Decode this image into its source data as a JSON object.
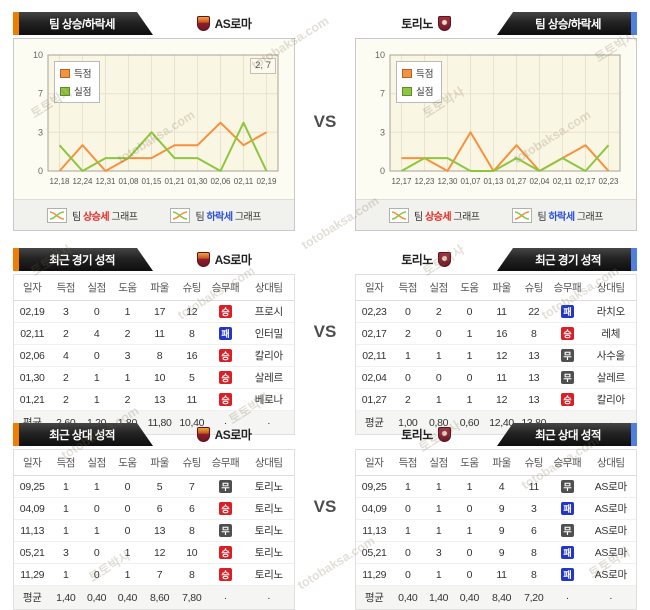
{
  "vs_label": "VS",
  "watermark": {
    "korean": "토토박사",
    "domain": "totobaksa.com"
  },
  "teams": {
    "left": "AS로마",
    "right": "토리노"
  },
  "colors": {
    "accent_left": "#f07d00",
    "accent_right": "#4f7fe0",
    "line_score": "#f6923e",
    "line_concede": "#8dc63f",
    "badge": {
      "승": "#da1f26",
      "무": "#4f4f4f",
      "패": "#2336c9"
    }
  },
  "trend": {
    "tab_label": "팀 상승/하락세",
    "legend": {
      "rise": {
        "prefix": "팀",
        "word": "상승세",
        "suffix": "그래프"
      },
      "fall": {
        "prefix": "팀",
        "word": "하락세",
        "suffix": "그래프"
      }
    }
  },
  "chart_data": [
    {
      "type": "line",
      "team": "AS로마",
      "yticks": [
        0,
        3,
        7,
        10
      ],
      "x": [
        "12,18",
        "12,24",
        "12,31",
        "01,08",
        "01,15",
        "01,21",
        "01,30",
        "02,06",
        "02,11",
        "02,19"
      ],
      "series": [
        {
          "name": "득점",
          "color": "#f6923e",
          "values": [
            0,
            2,
            0,
            1,
            1,
            2,
            2,
            4,
            2,
            3
          ]
        },
        {
          "name": "실점",
          "color": "#8dc63f",
          "values": [
            2,
            0,
            1,
            1,
            3,
            1,
            1,
            0,
            4,
            0
          ]
        }
      ],
      "annotation": "2, 7",
      "legend_position": "top-left",
      "grid": true
    },
    {
      "type": "line",
      "team": "토리노",
      "yticks": [
        0,
        3,
        7,
        10
      ],
      "x": [
        "12,17",
        "12,23",
        "12,30",
        "01,07",
        "01,13",
        "01,27",
        "02,04",
        "02,11",
        "02,17",
        "02,23"
      ],
      "series": [
        {
          "name": "득점",
          "color": "#f6923e",
          "values": [
            1,
            1,
            0,
            3,
            0,
            2,
            0,
            1,
            2,
            0
          ]
        },
        {
          "name": "실점",
          "color": "#8dc63f",
          "values": [
            0,
            1,
            1,
            0,
            0,
            1,
            0,
            1,
            0,
            2
          ]
        }
      ],
      "annotation": null,
      "legend_position": "top-left",
      "grid": true
    }
  ],
  "recent": {
    "tab_label": "최근 경기 성적",
    "columns": [
      "일자",
      "득점",
      "실점",
      "도움",
      "파울",
      "슈팅",
      "승무패",
      "상대팀"
    ],
    "left": {
      "rows": [
        {
          "cells": [
            "02,19",
            "3",
            "0",
            "1",
            "17",
            "12"
          ],
          "result": "승",
          "opponent": "프로시"
        },
        {
          "cells": [
            "02,11",
            "2",
            "4",
            "2",
            "11",
            "8"
          ],
          "result": "패",
          "opponent": "인터밀"
        },
        {
          "cells": [
            "02,06",
            "4",
            "0",
            "3",
            "8",
            "16"
          ],
          "result": "승",
          "opponent": "칼리아"
        },
        {
          "cells": [
            "01,30",
            "2",
            "1",
            "1",
            "10",
            "5"
          ],
          "result": "승",
          "opponent": "살레르"
        },
        {
          "cells": [
            "01,21",
            "2",
            "1",
            "2",
            "13",
            "11"
          ],
          "result": "승",
          "opponent": "베로나"
        }
      ],
      "avg": {
        "cells": [
          "평균",
          "2,60",
          "1,20",
          "1,80",
          "11,80",
          "10,40"
        ],
        "result": "·",
        "opponent": "·"
      }
    },
    "right": {
      "rows": [
        {
          "cells": [
            "02,23",
            "0",
            "2",
            "0",
            "11",
            "22"
          ],
          "result": "패",
          "opponent": "라치오"
        },
        {
          "cells": [
            "02,17",
            "2",
            "0",
            "1",
            "16",
            "8"
          ],
          "result": "승",
          "opponent": "레체"
        },
        {
          "cells": [
            "02,11",
            "1",
            "1",
            "1",
            "12",
            "13"
          ],
          "result": "무",
          "opponent": "사수올"
        },
        {
          "cells": [
            "02,04",
            "0",
            "0",
            "0",
            "11",
            "13"
          ],
          "result": "무",
          "opponent": "살레르"
        },
        {
          "cells": [
            "01,27",
            "2",
            "1",
            "1",
            "12",
            "13"
          ],
          "result": "승",
          "opponent": "칼리아"
        }
      ],
      "avg": {
        "cells": [
          "평균",
          "1,00",
          "0,80",
          "0,60",
          "12,40",
          "13,80"
        ],
        "result": "·",
        "opponent": "·"
      }
    }
  },
  "h2h": {
    "tab_label": "최근 상대 성적",
    "columns": [
      "일자",
      "득점",
      "실점",
      "도움",
      "파울",
      "슈팅",
      "승무패",
      "상대팀"
    ],
    "left": {
      "rows": [
        {
          "cells": [
            "09,25",
            "1",
            "1",
            "0",
            "5",
            "7"
          ],
          "result": "무",
          "opponent": "토리노"
        },
        {
          "cells": [
            "04,09",
            "1",
            "0",
            "0",
            "6",
            "6"
          ],
          "result": "승",
          "opponent": "토리노"
        },
        {
          "cells": [
            "11,13",
            "1",
            "1",
            "0",
            "13",
            "8"
          ],
          "result": "무",
          "opponent": "토리노"
        },
        {
          "cells": [
            "05,21",
            "3",
            "0",
            "1",
            "12",
            "10"
          ],
          "result": "승",
          "opponent": "토리노"
        },
        {
          "cells": [
            "11,29",
            "1",
            "0",
            "1",
            "7",
            "8"
          ],
          "result": "승",
          "opponent": "토리노"
        }
      ],
      "avg": {
        "cells": [
          "평균",
          "1,40",
          "0,40",
          "0,40",
          "8,60",
          "7,80"
        ],
        "result": "·",
        "opponent": "·"
      }
    },
    "right": {
      "rows": [
        {
          "cells": [
            "09,25",
            "1",
            "1",
            "1",
            "4",
            "11"
          ],
          "result": "무",
          "opponent": "AS로마"
        },
        {
          "cells": [
            "04,09",
            "0",
            "1",
            "0",
            "9",
            "3"
          ],
          "result": "패",
          "opponent": "AS로마"
        },
        {
          "cells": [
            "11,13",
            "1",
            "1",
            "1",
            "9",
            "6"
          ],
          "result": "무",
          "opponent": "AS로마"
        },
        {
          "cells": [
            "05,21",
            "0",
            "3",
            "0",
            "9",
            "8"
          ],
          "result": "패",
          "opponent": "AS로마"
        },
        {
          "cells": [
            "11,29",
            "0",
            "1",
            "0",
            "11",
            "8"
          ],
          "result": "패",
          "opponent": "AS로마"
        }
      ],
      "avg": {
        "cells": [
          "평균",
          "0,40",
          "1,40",
          "0,40",
          "8,40",
          "7,20"
        ],
        "result": "·",
        "opponent": "·"
      }
    }
  }
}
